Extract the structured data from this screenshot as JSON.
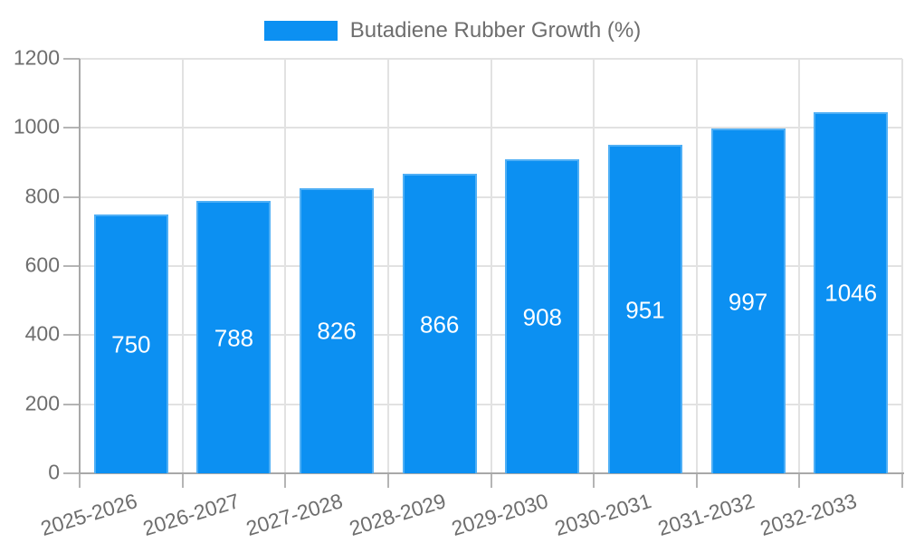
{
  "chart_data": {
    "type": "bar",
    "title": "",
    "legend": "Butadiene Rubber Growth (%)",
    "legend_position": "top-center",
    "categories": [
      "2025-2026",
      "2026-2027",
      "2027-2028",
      "2028-2029",
      "2029-2030",
      "2030-2031",
      "2031-2032",
      "2032-2033"
    ],
    "values": [
      750,
      788,
      826,
      866,
      908,
      951,
      997,
      1046
    ],
    "value_labels": [
      "750",
      "788",
      "826",
      "866",
      "908",
      "951",
      "997",
      "1046"
    ],
    "xlabel": "",
    "ylabel": "",
    "ylim": [
      0,
      1200
    ],
    "yticks": [
      0,
      200,
      400,
      600,
      800,
      1000,
      1200
    ],
    "grid": true
  },
  "colors": {
    "bar": "#0C90F2",
    "grid": "#E2E2E2",
    "axis": "#A8A8A8",
    "tick_mark": "#B5B5B5",
    "tick_text": "#6E6E6E",
    "bar_value_text": "#FFFFFF",
    "background": "#FFFFFF"
  }
}
